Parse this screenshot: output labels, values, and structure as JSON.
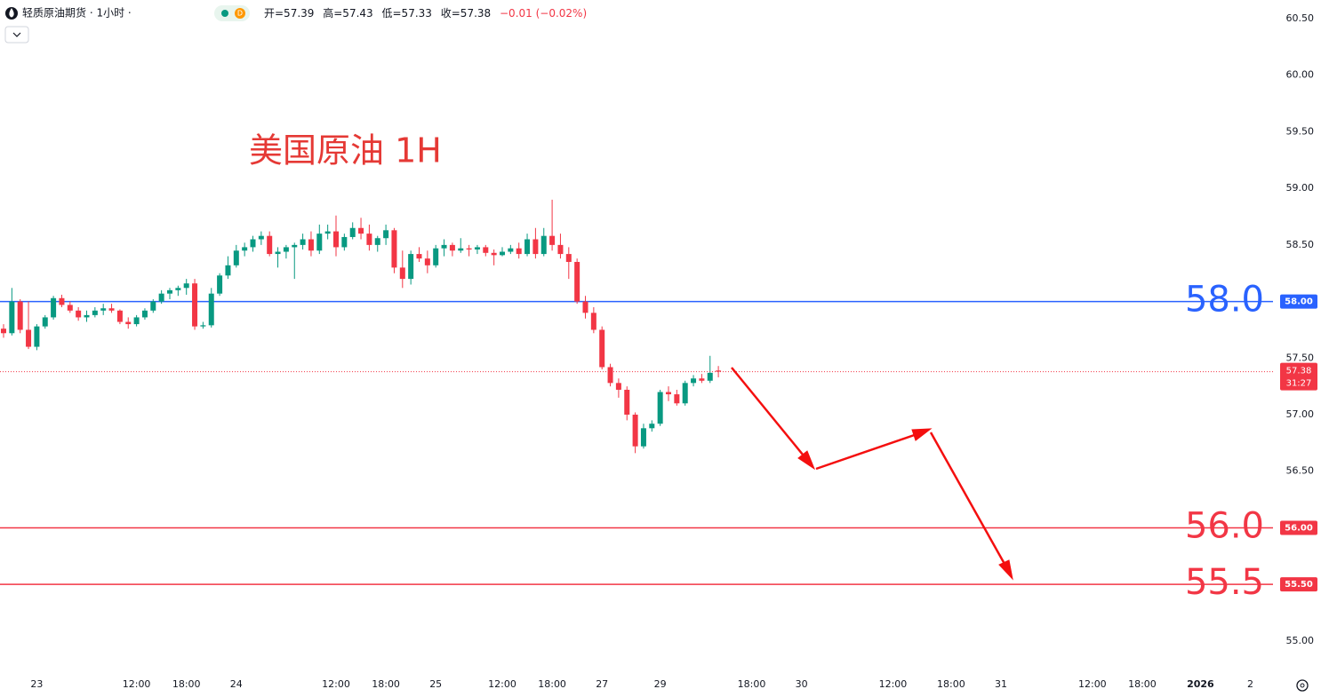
{
  "header": {
    "symbol": "轻质原油期货 · 1小时 ·",
    "badge": "D",
    "open": "开=57.39",
    "high": "高=57.43",
    "low": "低=57.33",
    "close": "收=57.38",
    "change": "−0.01 (−0.02%)"
  },
  "chart_data": {
    "type": "candlestick",
    "annotation": "美国原油 1H",
    "up_color": "#089981",
    "down_color": "#f23645",
    "ylim": [
      54.74,
      60.665
    ],
    "yticks": [
      {
        "value": 55,
        "label": "55.00"
      },
      {
        "value": 55.5,
        "label": "55.50"
      },
      {
        "value": 56,
        "label": "56.00"
      },
      {
        "value": 56.5,
        "label": "56.50"
      },
      {
        "value": 57,
        "label": "57.00"
      },
      {
        "value": 57.5,
        "label": "57.50"
      },
      {
        "value": 58,
        "label": "58.00"
      },
      {
        "value": 58.5,
        "label": "58.50"
      },
      {
        "value": 59,
        "label": "59.00"
      },
      {
        "value": 59.5,
        "label": "59.50"
      },
      {
        "value": 60,
        "label": "60.00"
      },
      {
        "value": 60.5,
        "label": "60.50"
      }
    ],
    "hlines": [
      {
        "value": 58,
        "label": "58.0",
        "tag": "58.00",
        "color": "#2962ff"
      },
      {
        "value": 56,
        "label": "56.0",
        "tag": "56.00",
        "color": "#f23645"
      },
      {
        "value": 55.5,
        "label": "55.5",
        "tag": "55.50",
        "color": "#f23645"
      }
    ],
    "last_price": {
      "value": 57.38,
      "countdown": "31:27",
      "color": "#f23645"
    },
    "categories": [
      null,
      null,
      null,
      null,
      "23",
      null,
      null,
      null,
      null,
      null,
      null,
      null,
      null,
      null,
      null,
      null,
      "12:00",
      null,
      null,
      null,
      null,
      null,
      "18:00",
      null,
      null,
      null,
      null,
      null,
      "24",
      null,
      null,
      null,
      null,
      null,
      null,
      null,
      null,
      null,
      null,
      null,
      "12:00",
      null,
      null,
      null,
      null,
      null,
      "18:00",
      null,
      null,
      null,
      null,
      null,
      "25",
      null,
      null,
      null,
      null,
      null,
      null,
      null,
      "12:00",
      null,
      null,
      null,
      null,
      null,
      "18:00",
      null,
      null,
      null,
      null,
      null,
      "27",
      null,
      null,
      null,
      null,
      null,
      null,
      "29",
      null,
      null,
      null,
      null,
      null,
      null,
      null,
      null,
      null,
      null,
      "18:00",
      null,
      null,
      null,
      null,
      null,
      "30",
      null,
      null,
      null,
      null,
      null,
      null,
      null,
      null,
      null,
      null,
      "12:00",
      null,
      null,
      null,
      null,
      null,
      null,
      "18:00",
      null,
      null,
      null,
      null,
      null,
      "31",
      null,
      null,
      null,
      null,
      null,
      null,
      null,
      null,
      null,
      null,
      "12:00",
      null,
      null,
      null,
      null,
      null,
      "18:00",
      null,
      null,
      null,
      null,
      null,
      null,
      "2026",
      null,
      null,
      null,
      null,
      null,
      "2",
      null,
      null
    ],
    "open": [
      57.76,
      57.72,
      58.0,
      57.75,
      57.6,
      57.78,
      57.86,
      58.03,
      57.97,
      57.92,
      57.86,
      57.88,
      57.92,
      57.94,
      57.92,
      57.82,
      57.8,
      57.86,
      57.92,
      58.0,
      58.07,
      58.1,
      58.12,
      58.16,
      57.78,
      57.79,
      58.07,
      58.23,
      58.32,
      58.45,
      58.48,
      58.55,
      58.58,
      58.42,
      58.44,
      58.48,
      58.5,
      58.55,
      58.45,
      58.6,
      58.62,
      58.48,
      58.57,
      58.65,
      58.6,
      58.5,
      58.56,
      58.63,
      58.3,
      58.2,
      58.42,
      58.38,
      58.32,
      58.47,
      58.5,
      58.45,
      58.47,
      58.46,
      58.48,
      58.43,
      58.41,
      58.44,
      58.47,
      58.42,
      58.55,
      58.42,
      58.58,
      58.5,
      58.42,
      58.35,
      58.0,
      57.9,
      57.75,
      57.42,
      57.28,
      57.22,
      57.0,
      56.72,
      56.88,
      56.92,
      57.2,
      57.18,
      57.1,
      57.28,
      57.32,
      57.3,
      57.39,
      null,
      null,
      null,
      null,
      null,
      null,
      null,
      null,
      null,
      null,
      null,
      null,
      null,
      null,
      null,
      null,
      null,
      null,
      null,
      null,
      null,
      null,
      null,
      null,
      null,
      null,
      null,
      null,
      null,
      null,
      null,
      null,
      null,
      null,
      null,
      null,
      null,
      null,
      null,
      null,
      null,
      null,
      null,
      null,
      null,
      null,
      null,
      null,
      null,
      null,
      null,
      null,
      null,
      null,
      null,
      null,
      null,
      null,
      null,
      null,
      null,
      null,
      null,
      null,
      null,
      null
    ],
    "high": [
      57.8,
      58.12,
      58.02,
      58.0,
      57.8,
      57.88,
      58.05,
      58.06,
      58.0,
      57.95,
      57.92,
      57.95,
      57.98,
      57.98,
      57.93,
      57.86,
      57.88,
      57.94,
      58.02,
      58.1,
      58.12,
      58.14,
      58.2,
      58.2,
      57.82,
      58.12,
      58.25,
      58.4,
      58.5,
      58.52,
      58.58,
      58.62,
      58.62,
      58.48,
      58.5,
      58.52,
      58.6,
      58.62,
      58.68,
      58.68,
      58.76,
      58.6,
      58.7,
      58.74,
      58.68,
      58.58,
      58.68,
      58.65,
      58.45,
      58.45,
      58.48,
      58.45,
      58.5,
      58.55,
      58.52,
      58.56,
      58.5,
      58.5,
      58.5,
      58.46,
      58.48,
      58.5,
      58.52,
      58.6,
      58.65,
      58.65,
      58.9,
      58.6,
      58.48,
      58.38,
      58.05,
      57.95,
      57.78,
      57.45,
      57.32,
      57.25,
      57.02,
      56.92,
      56.95,
      57.22,
      57.25,
      57.22,
      57.3,
      57.35,
      57.36,
      57.52,
      57.43,
      null,
      null,
      null,
      null,
      null,
      null,
      null,
      null,
      null,
      null,
      null,
      null,
      null,
      null,
      null,
      null,
      null,
      null,
      null,
      null,
      null,
      null,
      null,
      null,
      null,
      null,
      null,
      null,
      null,
      null,
      null,
      null,
      null,
      null,
      null,
      null,
      null,
      null,
      null,
      null,
      null,
      null,
      null,
      null,
      null,
      null,
      null,
      null,
      null,
      null,
      null,
      null,
      null,
      null,
      null,
      null,
      null,
      null,
      null,
      null,
      null,
      null,
      null,
      null,
      null,
      null
    ],
    "low": [
      57.68,
      57.7,
      57.72,
      57.58,
      57.57,
      57.76,
      57.84,
      57.95,
      57.9,
      57.83,
      57.82,
      57.86,
      57.88,
      57.9,
      57.8,
      57.76,
      57.78,
      57.84,
      57.9,
      57.98,
      58.02,
      58.05,
      58.06,
      57.75,
      57.76,
      57.77,
      58.05,
      58.2,
      58.3,
      58.4,
      58.44,
      58.5,
      58.4,
      58.3,
      58.38,
      58.2,
      58.46,
      58.4,
      58.42,
      58.55,
      58.4,
      58.45,
      58.55,
      58.55,
      58.45,
      58.44,
      58.5,
      58.25,
      58.12,
      58.15,
      58.35,
      58.25,
      58.3,
      58.4,
      58.4,
      58.43,
      58.4,
      58.42,
      58.4,
      58.32,
      58.4,
      58.42,
      58.38,
      58.4,
      58.38,
      58.4,
      58.45,
      58.38,
      58.2,
      57.98,
      57.85,
      57.72,
      57.4,
      57.25,
      57.15,
      56.95,
      56.66,
      56.7,
      56.85,
      56.9,
      57.12,
      57.08,
      57.08,
      57.25,
      57.28,
      57.28,
      57.33,
      null,
      null,
      null,
      null,
      null,
      null,
      null,
      null,
      null,
      null,
      null,
      null,
      null,
      null,
      null,
      null,
      null,
      null,
      null,
      null,
      null,
      null,
      null,
      null,
      null,
      null,
      null,
      null,
      null,
      null,
      null,
      null,
      null,
      null,
      null,
      null,
      null,
      null,
      null,
      null,
      null,
      null,
      null,
      null,
      null,
      null,
      null,
      null,
      null,
      null,
      null,
      null,
      null,
      null,
      null,
      null,
      null,
      null,
      null,
      null,
      null,
      null,
      null,
      null,
      null,
      null
    ],
    "close": [
      57.72,
      58.0,
      57.75,
      57.6,
      57.78,
      57.86,
      58.03,
      57.97,
      57.92,
      57.86,
      57.88,
      57.92,
      57.94,
      57.92,
      57.82,
      57.8,
      57.86,
      57.92,
      58.0,
      58.07,
      58.1,
      58.12,
      58.16,
      57.78,
      57.79,
      58.07,
      58.23,
      58.32,
      58.45,
      58.48,
      58.55,
      58.58,
      58.42,
      58.44,
      58.48,
      58.5,
      58.55,
      58.45,
      58.6,
      58.62,
      58.48,
      58.57,
      58.65,
      58.6,
      58.5,
      58.56,
      58.63,
      58.3,
      58.2,
      58.42,
      58.38,
      58.32,
      58.47,
      58.5,
      58.45,
      58.47,
      58.46,
      58.48,
      58.43,
      58.41,
      58.44,
      58.47,
      58.42,
      58.55,
      58.42,
      58.58,
      58.5,
      58.42,
      58.35,
      58.0,
      57.9,
      57.75,
      57.42,
      57.28,
      57.22,
      57.0,
      56.72,
      56.88,
      56.92,
      57.2,
      57.18,
      57.1,
      57.28,
      57.32,
      57.3,
      57.37,
      57.38,
      null,
      null,
      null,
      null,
      null,
      null,
      null,
      null,
      null,
      null,
      null,
      null,
      null,
      null,
      null,
      null,
      null,
      null,
      null,
      null,
      null,
      null,
      null,
      null,
      null,
      null,
      null,
      null,
      null,
      null,
      null,
      null,
      null,
      null,
      null,
      null,
      null,
      null,
      null,
      null,
      null,
      null,
      null,
      null,
      null,
      null,
      null,
      null,
      null,
      null,
      null,
      null,
      null,
      null,
      null,
      null,
      null,
      null,
      null,
      null,
      null,
      null,
      null,
      null,
      null,
      null
    ]
  }
}
